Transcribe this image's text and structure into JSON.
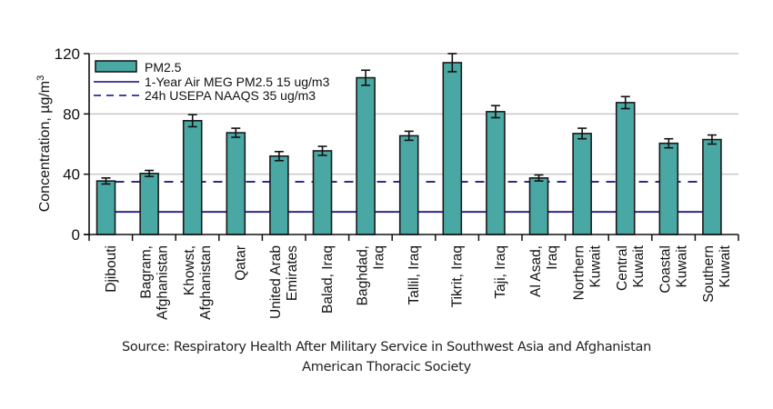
{
  "chart_data": {
    "type": "bar",
    "title": "",
    "xlabel": "",
    "ylabel": "Concentration, µg/m³",
    "ylabel_main": "Concentration, µg/m",
    "ylabel_sup": "3",
    "ylim": [
      0,
      120
    ],
    "yticks": [
      0,
      40,
      80,
      120
    ],
    "grid": true,
    "legend_position": "top-left",
    "categories": [
      [
        "Djibouti"
      ],
      [
        "Bagram,",
        "Afghanistan"
      ],
      [
        "Khowst,",
        "Afghanistan"
      ],
      [
        "Qatar"
      ],
      [
        "United Arab",
        "Emirates"
      ],
      [
        "Balad, Iraq"
      ],
      [
        "Baghdad,",
        "Iraq"
      ],
      [
        "Tallil, Iraq"
      ],
      [
        "Tikrit, Iraq"
      ],
      [
        "Taji, Iraq"
      ],
      [
        "Al Asad,",
        "Iraq"
      ],
      [
        "Northern",
        "Kuwait"
      ],
      [
        "Central",
        "Kuwait"
      ],
      [
        "Coastal",
        "Kuwait"
      ],
      [
        "Southern",
        "Kuwait"
      ]
    ],
    "series": [
      {
        "name": "PM2.5",
        "kind": "bar",
        "color": "#4aa8a4",
        "values": [
          35.5,
          40.5,
          75.5,
          67.5,
          52,
          55.5,
          104,
          65.5,
          114,
          81.5,
          37.5,
          67,
          87.5,
          60.5,
          63
        ],
        "errors": [
          2,
          2,
          4,
          3,
          3,
          3,
          5,
          3,
          6,
          4,
          2,
          3.5,
          4,
          3,
          3
        ]
      },
      {
        "name": "1-Year Air MEG PM2.5 15 ug/m3",
        "kind": "hline",
        "style": "solid",
        "color": "#2e2a8c",
        "value": 15
      },
      {
        "name": "24h USEPA NAAQS 35 ug/m3",
        "kind": "hline",
        "style": "dashed",
        "color": "#2e2a8c",
        "value": 35
      }
    ]
  },
  "source": {
    "line1": "Source: Respiratory Health After Military Service in Southwest Asia and Afghanistan",
    "line2": "American Thoracic Society"
  }
}
